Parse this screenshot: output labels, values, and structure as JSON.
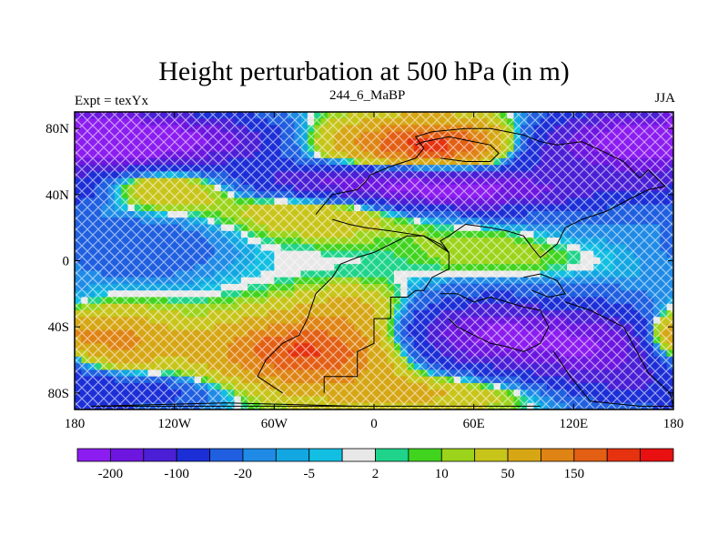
{
  "page": {
    "title": "Height perturbation at 500 hPa (in m)",
    "left_label": "Expt = texYx",
    "center_label": "244_6_MaBP",
    "right_label": "JJA"
  },
  "chart_data": {
    "type": "heatmap",
    "title": "Height perturbation at 500 hPa (in m)",
    "xlabel": "",
    "ylabel": "",
    "xlim": [
      -180,
      180
    ],
    "ylim": [
      -90,
      90
    ],
    "x_ticks": [
      {
        "value": -180,
        "label": "180"
      },
      {
        "value": -120,
        "label": "120W"
      },
      {
        "value": -60,
        "label": "60W"
      },
      {
        "value": 0,
        "label": "0"
      },
      {
        "value": 60,
        "label": "60E"
      },
      {
        "value": 120,
        "label": "120E"
      },
      {
        "value": 180,
        "label": "180"
      }
    ],
    "y_ticks": [
      {
        "value": 80,
        "label": "80N"
      },
      {
        "value": 40,
        "label": "40N"
      },
      {
        "value": 0,
        "label": "0"
      },
      {
        "value": -40,
        "label": "40S"
      },
      {
        "value": -80,
        "label": "80S"
      }
    ],
    "colorbar": {
      "colors": [
        "#8c1df0",
        "#6d16e0",
        "#4a1fd6",
        "#1c2fd7",
        "#1f5fe0",
        "#1f8be6",
        "#13a7e2",
        "#12bfe2",
        "#e8e8e8",
        "#1fd48a",
        "#41d41f",
        "#9bd41a",
        "#c8c51a",
        "#d6a614",
        "#df8414",
        "#e35f14",
        "#e6320f",
        "#e81010"
      ],
      "levels": [
        -200,
        -150,
        -100,
        -50,
        -20,
        -10,
        -5,
        -2,
        2,
        5,
        10,
        20,
        50,
        100,
        150,
        200,
        250
      ],
      "labels": [
        {
          "level": -200,
          "text": "-200"
        },
        {
          "level": -100,
          "text": "-100"
        },
        {
          "level": -20,
          "text": "-20"
        },
        {
          "level": -5,
          "text": "-5"
        },
        {
          "level": 2,
          "text": "2"
        },
        {
          "level": 10,
          "text": "10"
        },
        {
          "level": 50,
          "text": "50"
        },
        {
          "level": 150,
          "text": "150"
        }
      ]
    },
    "field_features": [
      {
        "lon": -150,
        "lat": 72,
        "value": -220,
        "sx": 30,
        "sy": 14
      },
      {
        "lon": -95,
        "lat": 72,
        "value": -150,
        "sx": 30,
        "sy": 12
      },
      {
        "lon": 35,
        "lat": 70,
        "value": 220,
        "sx": 38,
        "sy": 11
      },
      {
        "lon": 150,
        "lat": 72,
        "value": -220,
        "sx": 38,
        "sy": 14
      },
      {
        "lon": 95,
        "lat": 65,
        "value": -60,
        "sx": 18,
        "sy": 10
      },
      {
        "lon": 0,
        "lat": 48,
        "value": -180,
        "sx": 60,
        "sy": 8
      },
      {
        "lon": 60,
        "lat": 40,
        "value": -150,
        "sx": 45,
        "sy": 8
      },
      {
        "lon": 160,
        "lat": 42,
        "value": -120,
        "sx": 30,
        "sy": 8
      },
      {
        "lon": -130,
        "lat": 48,
        "value": 110,
        "sx": 35,
        "sy": 10
      },
      {
        "lon": 150,
        "lat": 40,
        "value": 70,
        "sx": 18,
        "sy": 6
      },
      {
        "lon": -30,
        "lat": 30,
        "value": 60,
        "sx": 35,
        "sy": 10
      },
      {
        "lon": -140,
        "lat": 8,
        "value": -45,
        "sx": 35,
        "sy": 14
      },
      {
        "lon": 110,
        "lat": 20,
        "value": -20,
        "sx": 40,
        "sy": 10
      },
      {
        "lon": 75,
        "lat": 8,
        "value": 25,
        "sx": 35,
        "sy": 12
      },
      {
        "lon": -40,
        "lat": -55,
        "value": 210,
        "sx": 40,
        "sy": 14
      },
      {
        "lon": -160,
        "lat": -48,
        "value": 140,
        "sx": 25,
        "sy": 12
      },
      {
        "lon": -10,
        "lat": -30,
        "value": 60,
        "sx": 25,
        "sy": 10
      },
      {
        "lon": 65,
        "lat": -45,
        "value": -200,
        "sx": 40,
        "sy": 15
      },
      {
        "lon": 140,
        "lat": -55,
        "value": -170,
        "sx": 35,
        "sy": 18
      },
      {
        "lon": -150,
        "lat": -80,
        "value": -80,
        "sx": 40,
        "sy": 8
      },
      {
        "lon": 30,
        "lat": -80,
        "value": 60,
        "sx": 50,
        "sy": 8
      },
      {
        "lon": 178,
        "lat": -45,
        "value": 80,
        "sx": 10,
        "sy": 8
      }
    ],
    "continent_outlines": [
      [
        [
          -30,
          -80
        ],
        [
          -30,
          -70
        ],
        [
          -10,
          -70
        ],
        [
          -10,
          -55
        ],
        [
          0,
          -50
        ],
        [
          0,
          -35
        ],
        [
          10,
          -35
        ],
        [
          10,
          -22
        ],
        [
          20,
          -22
        ],
        [
          25,
          -18
        ],
        [
          30,
          -18
        ],
        [
          35,
          -10
        ],
        [
          45,
          -5
        ],
        [
          45,
          5
        ],
        [
          40,
          10
        ],
        [
          30,
          15
        ],
        [
          20,
          15
        ],
        [
          10,
          10
        ],
        [
          0,
          5
        ],
        [
          -10,
          2
        ],
        [
          -20,
          -2
        ],
        [
          -25,
          -10
        ],
        [
          -35,
          -20
        ],
        [
          -40,
          -35
        ],
        [
          -45,
          -45
        ],
        [
          -55,
          -50
        ],
        [
          -65,
          -60
        ],
        [
          -70,
          -70
        ],
        [
          -55,
          -80
        ]
      ],
      [
        [
          -35,
          28
        ],
        [
          -25,
          40
        ],
        [
          -10,
          43
        ],
        [
          -5,
          48
        ],
        [
          -2,
          52
        ],
        [
          10,
          57
        ],
        [
          25,
          62
        ],
        [
          30,
          68
        ],
        [
          25,
          75
        ],
        [
          35,
          78
        ],
        [
          55,
          80
        ],
        [
          70,
          80
        ],
        [
          80,
          78
        ],
        [
          90,
          76
        ],
        [
          100,
          72
        ],
        [
          110,
          70
        ],
        [
          125,
          72
        ],
        [
          140,
          65
        ],
        [
          150,
          60
        ],
        [
          160,
          50
        ],
        [
          165,
          55
        ],
        [
          170,
          50
        ],
        [
          175,
          45
        ],
        [
          165,
          43
        ],
        [
          155,
          38
        ],
        [
          140,
          30
        ],
        [
          125,
          25
        ],
        [
          115,
          20
        ],
        [
          110,
          10
        ],
        [
          100,
          2
        ],
        [
          95,
          8
        ],
        [
          90,
          15
        ],
        [
          80,
          18
        ],
        [
          70,
          20
        ],
        [
          55,
          22
        ],
        [
          45,
          15
        ],
        [
          40,
          12
        ],
        [
          45,
          5
        ],
        [
          30,
          15
        ],
        [
          10,
          18
        ],
        [
          -5,
          20
        ],
        [
          -15,
          22
        ],
        [
          -25,
          25
        ]
      ],
      [
        [
          25,
          70
        ],
        [
          30,
          72
        ],
        [
          45,
          75
        ],
        [
          60,
          72
        ],
        [
          70,
          70
        ],
        [
          75,
          65
        ],
        [
          70,
          60
        ],
        [
          55,
          60
        ],
        [
          40,
          62
        ]
      ],
      [
        [
          40,
          -20
        ],
        [
          50,
          -20
        ],
        [
          60,
          -25
        ],
        [
          70,
          -22
        ],
        [
          80,
          -25
        ],
        [
          90,
          -28
        ],
        [
          100,
          -30
        ],
        [
          105,
          -40
        ],
        [
          100,
          -50
        ],
        [
          90,
          -55
        ],
        [
          80,
          -52
        ],
        [
          70,
          -50
        ],
        [
          60,
          -45
        ],
        [
          50,
          -40
        ],
        [
          45,
          -35
        ]
      ],
      [
        [
          90,
          -10
        ],
        [
          100,
          -8
        ],
        [
          110,
          -12
        ],
        [
          115,
          -20
        ],
        [
          105,
          -22
        ],
        [
          95,
          -18
        ]
      ],
      [
        [
          115,
          -25
        ],
        [
          130,
          -30
        ],
        [
          140,
          -35
        ],
        [
          150,
          -40
        ],
        [
          158,
          -55
        ],
        [
          165,
          -68
        ],
        [
          178,
          -80
        ],
        [
          180,
          -88
        ],
        [
          160,
          -88
        ],
        [
          130,
          -85
        ],
        [
          118,
          -70
        ],
        [
          108,
          -55
        ]
      ],
      [
        [
          -170,
          -88
        ],
        [
          -90,
          -86
        ],
        [
          -10,
          -88
        ],
        [
          30,
          -88
        ],
        [
          60,
          -88
        ],
        [
          100,
          -88
        ],
        [
          -170,
          -88
        ]
      ]
    ]
  }
}
